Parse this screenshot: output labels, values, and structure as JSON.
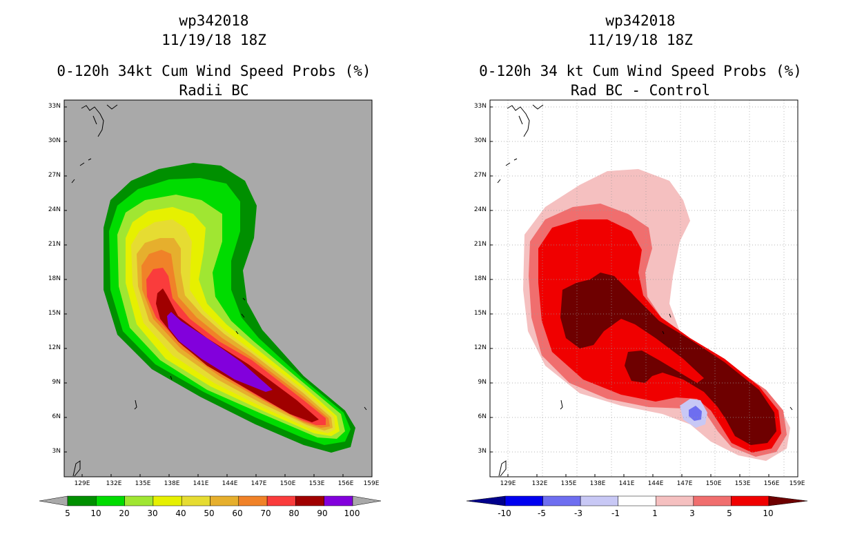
{
  "left": {
    "storm_id": "wp342018",
    "datetime": "11/19/18 18Z",
    "product": "0-120h 34kt Cum Wind Speed Probs (%)",
    "subtitle": "Radii BC",
    "colorbar_labels": [
      "5",
      "10",
      "20",
      "30",
      "40",
      "50",
      "60",
      "70",
      "80",
      "90",
      "100"
    ],
    "colorbar_colors": [
      "#008f00",
      "#00dc00",
      "#a0e632",
      "#e6f000",
      "#e6dc32",
      "#e6af2d",
      "#f08228",
      "#fa3c3c",
      "#a00000",
      "#8200dc"
    ],
    "background_color": "#a9a9a9"
  },
  "right": {
    "storm_id": "wp342018",
    "datetime": "11/19/18 18Z",
    "product": "0-120h 34 kt Cum Wind Speed Probs (%)",
    "subtitle": "Rad BC - Control",
    "colorbar_labels": [
      "-10",
      "-5",
      "-3",
      "-1",
      "1",
      "3",
      "5",
      "10"
    ],
    "colorbar_colors": [
      "#00008c",
      "#0000f0",
      "#6e6ef0",
      "#c8c8f5",
      "#ffffff",
      "#f5c0c0",
      "#f06e6e",
      "#f00000",
      "#6e0000"
    ]
  },
  "axes": {
    "lat_labels": [
      "33N",
      "30N",
      "27N",
      "24N",
      "21N",
      "18N",
      "15N",
      "12N",
      "9N",
      "6N",
      "3N"
    ],
    "lon_labels": [
      "129E",
      "132E",
      "135E",
      "138E",
      "141E",
      "144E",
      "147E",
      "150E",
      "153E",
      "156E",
      "159E"
    ]
  }
}
